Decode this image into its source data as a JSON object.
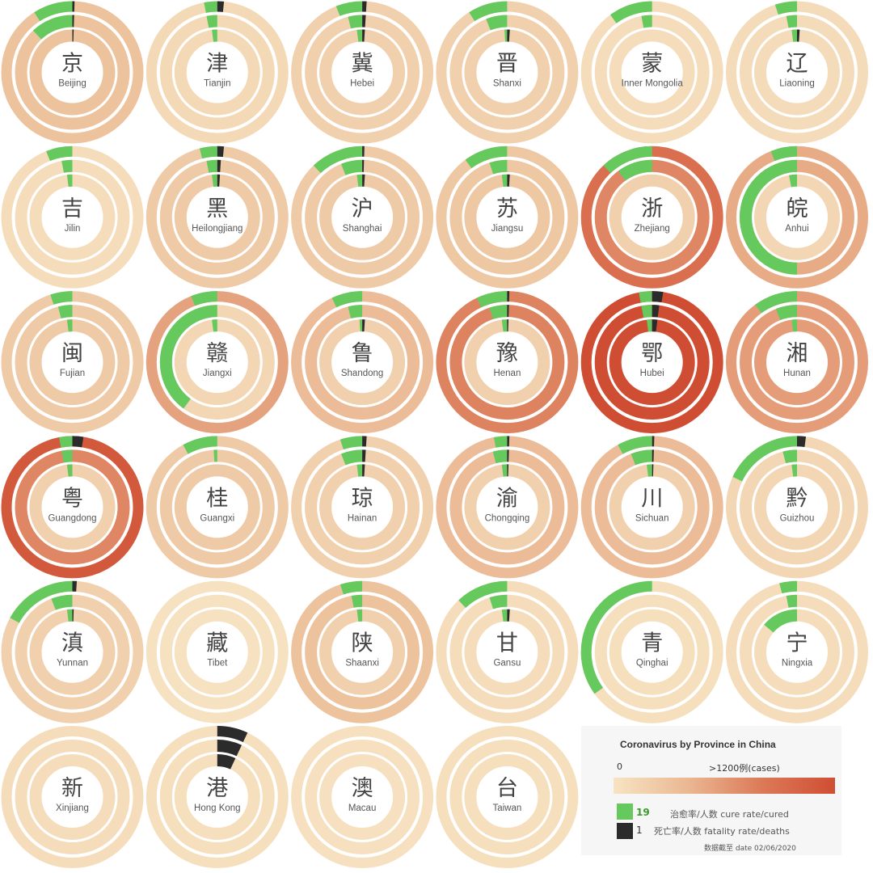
{
  "colors": {
    "cure": "#66c95e",
    "death": "#2b2b2b",
    "scale": [
      "#f7e4c3",
      "#eab892",
      "#dc7a58",
      "#cf4e33"
    ]
  },
  "legend": {
    "title": "Coronavirus by Province in China",
    "min_label": "0",
    "max_label": ">1200例(cases)",
    "cure_number": "19",
    "death_number": "1",
    "cure_label": "治愈率/人数 cure rate/cured",
    "death_label": "死亡率/人数 fatality rate/deaths",
    "date_label": "数据截至 date 02/06/2020"
  },
  "chart_data": {
    "type": "radial-ring-grid",
    "color_scale": {
      "min": 0,
      "max": 1200,
      "unit": "cases"
    },
    "ring_order": [
      "outer",
      "middle",
      "inner"
    ],
    "provinces": [
      {
        "char": "京",
        "name": "Beijing",
        "rings": [
          {
            "intensity": 0.25,
            "cure": 0.09,
            "death": 0.005
          },
          {
            "intensity": 0.25,
            "cure": 0.12,
            "death": 0.005
          },
          {
            "intensity": 0.25,
            "cure": 0.0,
            "death": 0.005
          }
        ]
      },
      {
        "char": "津",
        "name": "Tianjin",
        "rings": [
          {
            "intensity": 0.08,
            "cure": 0.03,
            "death": 0.015
          },
          {
            "intensity": 0.08,
            "cure": 0.03,
            "death": 0.0
          },
          {
            "intensity": 0.08,
            "cure": 0.02,
            "death": 0.0
          }
        ]
      },
      {
        "char": "冀",
        "name": "Hebei",
        "rings": [
          {
            "intensity": 0.15,
            "cure": 0.06,
            "death": 0.01
          },
          {
            "intensity": 0.15,
            "cure": 0.04,
            "death": 0.01
          },
          {
            "intensity": 0.15,
            "cure": 0.02,
            "death": 0.01
          }
        ]
      },
      {
        "char": "晋",
        "name": "Shanxi",
        "rings": [
          {
            "intensity": 0.15,
            "cure": 0.09,
            "death": 0.0
          },
          {
            "intensity": 0.15,
            "cure": 0.06,
            "death": 0.0
          },
          {
            "intensity": 0.15,
            "cure": 0.01,
            "death": 0.01
          }
        ]
      },
      {
        "char": "蒙",
        "name": "Inner Mongolia",
        "rings": [
          {
            "intensity": 0.05,
            "cure": 0.1,
            "death": 0.0
          },
          {
            "intensity": 0.05,
            "cure": 0.03,
            "death": 0.0
          },
          {
            "intensity": 0.05,
            "cure": 0.0,
            "death": 0.0
          }
        ]
      },
      {
        "char": "辽",
        "name": "Liaoning",
        "rings": [
          {
            "intensity": 0.07,
            "cure": 0.05,
            "death": 0.0
          },
          {
            "intensity": 0.07,
            "cure": 0.03,
            "death": 0.0
          },
          {
            "intensity": 0.07,
            "cure": 0.02,
            "death": 0.01
          }
        ]
      },
      {
        "char": "吉",
        "name": "Jilin",
        "rings": [
          {
            "intensity": 0.05,
            "cure": 0.06,
            "death": 0.0
          },
          {
            "intensity": 0.05,
            "cure": 0.03,
            "death": 0.0
          },
          {
            "intensity": 0.05,
            "cure": 0.02,
            "death": 0.0
          }
        ]
      },
      {
        "char": "黑",
        "name": "Heilongjiang",
        "rings": [
          {
            "intensity": 0.2,
            "cure": 0.04,
            "death": 0.015
          },
          {
            "intensity": 0.2,
            "cure": 0.03,
            "death": 0.01
          },
          {
            "intensity": 0.2,
            "cure": 0.02,
            "death": 0.01
          }
        ]
      },
      {
        "char": "沪",
        "name": "Shanghai",
        "rings": [
          {
            "intensity": 0.2,
            "cure": 0.12,
            "death": 0.005
          },
          {
            "intensity": 0.2,
            "cure": 0.06,
            "death": 0.005
          },
          {
            "intensity": 0.2,
            "cure": 0.02,
            "death": 0.01
          }
        ]
      },
      {
        "char": "苏",
        "name": "Jiangsu",
        "rings": [
          {
            "intensity": 0.22,
            "cure": 0.1,
            "death": 0.0
          },
          {
            "intensity": 0.22,
            "cure": 0.05,
            "death": 0.0
          },
          {
            "intensity": 0.22,
            "cure": 0.02,
            "death": 0.01
          }
        ]
      },
      {
        "char": "浙",
        "name": "Zhejiang",
        "rings": [
          {
            "intensity": 0.75,
            "cure": 0.12,
            "death": 0.0
          },
          {
            "intensity": 0.6,
            "cure": 0.1,
            "death": 0.0
          },
          {
            "intensity": 0.15,
            "cure": 0.0,
            "death": 0.0
          }
        ]
      },
      {
        "char": "皖",
        "name": "Anhui",
        "rings": [
          {
            "intensity": 0.4,
            "cure": 0.06,
            "death": 0.0
          },
          {
            "intensity": 0.4,
            "cure": 0.5,
            "death": 0.0
          },
          {
            "intensity": 0.1,
            "cure": 0.03,
            "death": 0.0
          }
        ]
      },
      {
        "char": "闽",
        "name": "Fujian",
        "rings": [
          {
            "intensity": 0.2,
            "cure": 0.05,
            "death": 0.0
          },
          {
            "intensity": 0.2,
            "cure": 0.04,
            "death": 0.0
          },
          {
            "intensity": 0.2,
            "cure": 0.02,
            "death": 0.0
          }
        ]
      },
      {
        "char": "赣",
        "name": "Jiangxi",
        "rings": [
          {
            "intensity": 0.45,
            "cure": 0.06,
            "death": 0.0
          },
          {
            "intensity": 0.1,
            "cure": 0.4,
            "death": 0.0
          },
          {
            "intensity": 0.1,
            "cure": 0.02,
            "death": 0.0
          }
        ]
      },
      {
        "char": "鲁",
        "name": "Shandong",
        "rings": [
          {
            "intensity": 0.3,
            "cure": 0.07,
            "death": 0.0
          },
          {
            "intensity": 0.3,
            "cure": 0.04,
            "death": 0.0
          },
          {
            "intensity": 0.15,
            "cure": 0.01,
            "death": 0.01
          }
        ]
      },
      {
        "char": "豫",
        "name": "Henan",
        "rings": [
          {
            "intensity": 0.62,
            "cure": 0.07,
            "death": 0.005
          },
          {
            "intensity": 0.62,
            "cure": 0.05,
            "death": 0.005
          },
          {
            "intensity": 0.15,
            "cure": 0.02,
            "death": 0.005
          }
        ]
      },
      {
        "char": "鄂",
        "name": "Hubei",
        "rings": [
          {
            "intensity": 1.0,
            "cure": 0.03,
            "death": 0.025
          },
          {
            "intensity": 1.0,
            "cure": 0.03,
            "death": 0.02
          },
          {
            "intensity": 1.0,
            "cure": 0.02,
            "death": 0.02
          }
        ]
      },
      {
        "char": "湘",
        "name": "Hunan",
        "rings": [
          {
            "intensity": 0.48,
            "cure": 0.1,
            "death": 0.0
          },
          {
            "intensity": 0.48,
            "cure": 0.06,
            "death": 0.0
          },
          {
            "intensity": 0.48,
            "cure": 0.02,
            "death": 0.0
          }
        ]
      },
      {
        "char": "粤",
        "name": "Guangdong",
        "rings": [
          {
            "intensity": 0.92,
            "cure": 0.03,
            "death": 0.025
          },
          {
            "intensity": 0.6,
            "cure": 0.03,
            "death": 0.0
          },
          {
            "intensity": 0.15,
            "cure": 0.02,
            "death": 0.0
          }
        ]
      },
      {
        "char": "桂",
        "name": "Guangxi",
        "rings": [
          {
            "intensity": 0.2,
            "cure": 0.08,
            "death": 0.0
          },
          {
            "intensity": 0.2,
            "cure": 0.01,
            "death": 0.0
          },
          {
            "intensity": 0.2,
            "cure": 0.0,
            "death": 0.0
          }
        ]
      },
      {
        "char": "琼",
        "name": "Hainan",
        "rings": [
          {
            "intensity": 0.15,
            "cure": 0.05,
            "death": 0.01
          },
          {
            "intensity": 0.15,
            "cure": 0.06,
            "death": 0.01
          },
          {
            "intensity": 0.15,
            "cure": 0.02,
            "death": 0.01
          }
        ]
      },
      {
        "char": "渝",
        "name": "Chongqing",
        "rings": [
          {
            "intensity": 0.3,
            "cure": 0.03,
            "death": 0.005
          },
          {
            "intensity": 0.3,
            "cure": 0.04,
            "death": 0.005
          },
          {
            "intensity": 0.15,
            "cure": 0.02,
            "death": 0.005
          }
        ]
      },
      {
        "char": "川",
        "name": "Sichuan",
        "rings": [
          {
            "intensity": 0.3,
            "cure": 0.08,
            "death": 0.005
          },
          {
            "intensity": 0.3,
            "cure": 0.06,
            "death": 0.005
          },
          {
            "intensity": 0.15,
            "cure": 0.02,
            "death": 0.005
          }
        ]
      },
      {
        "char": "黔",
        "name": "Guizhou",
        "rings": [
          {
            "intensity": 0.1,
            "cure": 0.18,
            "death": 0.02
          },
          {
            "intensity": 0.1,
            "cure": 0.04,
            "death": 0.0
          },
          {
            "intensity": 0.1,
            "cure": 0.02,
            "death": 0.0
          }
        ]
      },
      {
        "char": "滇",
        "name": "Yunnan",
        "rings": [
          {
            "intensity": 0.15,
            "cure": 0.17,
            "death": 0.01
          },
          {
            "intensity": 0.15,
            "cure": 0.06,
            "death": 0.0
          },
          {
            "intensity": 0.15,
            "cure": 0.02,
            "death": 0.005
          }
        ]
      },
      {
        "char": "藏",
        "name": "Tibet",
        "rings": [
          {
            "intensity": 0.02,
            "cure": 0.0,
            "death": 0.0
          },
          {
            "intensity": 0.02,
            "cure": 0.0,
            "death": 0.0
          },
          {
            "intensity": 0.02,
            "cure": 0.0,
            "death": 0.0
          }
        ]
      },
      {
        "char": "陕",
        "name": "Shaanxi",
        "rings": [
          {
            "intensity": 0.25,
            "cure": 0.05,
            "death": 0.0
          },
          {
            "intensity": 0.25,
            "cure": 0.03,
            "death": 0.0
          },
          {
            "intensity": 0.15,
            "cure": 0.02,
            "death": 0.0
          }
        ]
      },
      {
        "char": "甘",
        "name": "Gansu",
        "rings": [
          {
            "intensity": 0.05,
            "cure": 0.12,
            "death": 0.0
          },
          {
            "intensity": 0.05,
            "cure": 0.05,
            "death": 0.0
          },
          {
            "intensity": 0.05,
            "cure": 0.02,
            "death": 0.01
          }
        ]
      },
      {
        "char": "青",
        "name": "Qinghai",
        "rings": [
          {
            "intensity": 0.04,
            "cure": 0.35,
            "death": 0.0
          },
          {
            "intensity": 0.04,
            "cure": 0.0,
            "death": 0.0
          },
          {
            "intensity": 0.04,
            "cure": 0.0,
            "death": 0.0
          }
        ]
      },
      {
        "char": "宁",
        "name": "Ningxia",
        "rings": [
          {
            "intensity": 0.05,
            "cure": 0.04,
            "death": 0.0
          },
          {
            "intensity": 0.05,
            "cure": 0.03,
            "death": 0.0
          },
          {
            "intensity": 0.05,
            "cure": 0.14,
            "death": 0.0
          }
        ]
      },
      {
        "char": "新",
        "name": "Xinjiang",
        "rings": [
          {
            "intensity": 0.05,
            "cure": 0.0,
            "death": 0.0
          },
          {
            "intensity": 0.05,
            "cure": 0.0,
            "death": 0.0
          },
          {
            "intensity": 0.05,
            "cure": 0.0,
            "death": 0.0
          }
        ]
      },
      {
        "char": "港",
        "name": "Hong Kong",
        "rings": [
          {
            "intensity": 0.04,
            "cure": 0.0,
            "death": 0.07
          },
          {
            "intensity": 0.04,
            "cure": 0.0,
            "death": 0.07
          },
          {
            "intensity": 0.04,
            "cure": 0.0,
            "death": 0.07
          }
        ]
      },
      {
        "char": "澳",
        "name": "Macau",
        "rings": [
          {
            "intensity": 0.03,
            "cure": 0.0,
            "death": 0.0
          },
          {
            "intensity": 0.03,
            "cure": 0.0,
            "death": 0.0
          },
          {
            "intensity": 0.03,
            "cure": 0.0,
            "death": 0.0
          }
        ]
      },
      {
        "char": "台",
        "name": "Taiwan",
        "rings": [
          {
            "intensity": 0.04,
            "cure": 0.0,
            "death": 0.0
          },
          {
            "intensity": 0.04,
            "cure": 0.0,
            "death": 0.0
          },
          {
            "intensity": 0.04,
            "cure": 0.0,
            "death": 0.0
          }
        ]
      }
    ]
  }
}
